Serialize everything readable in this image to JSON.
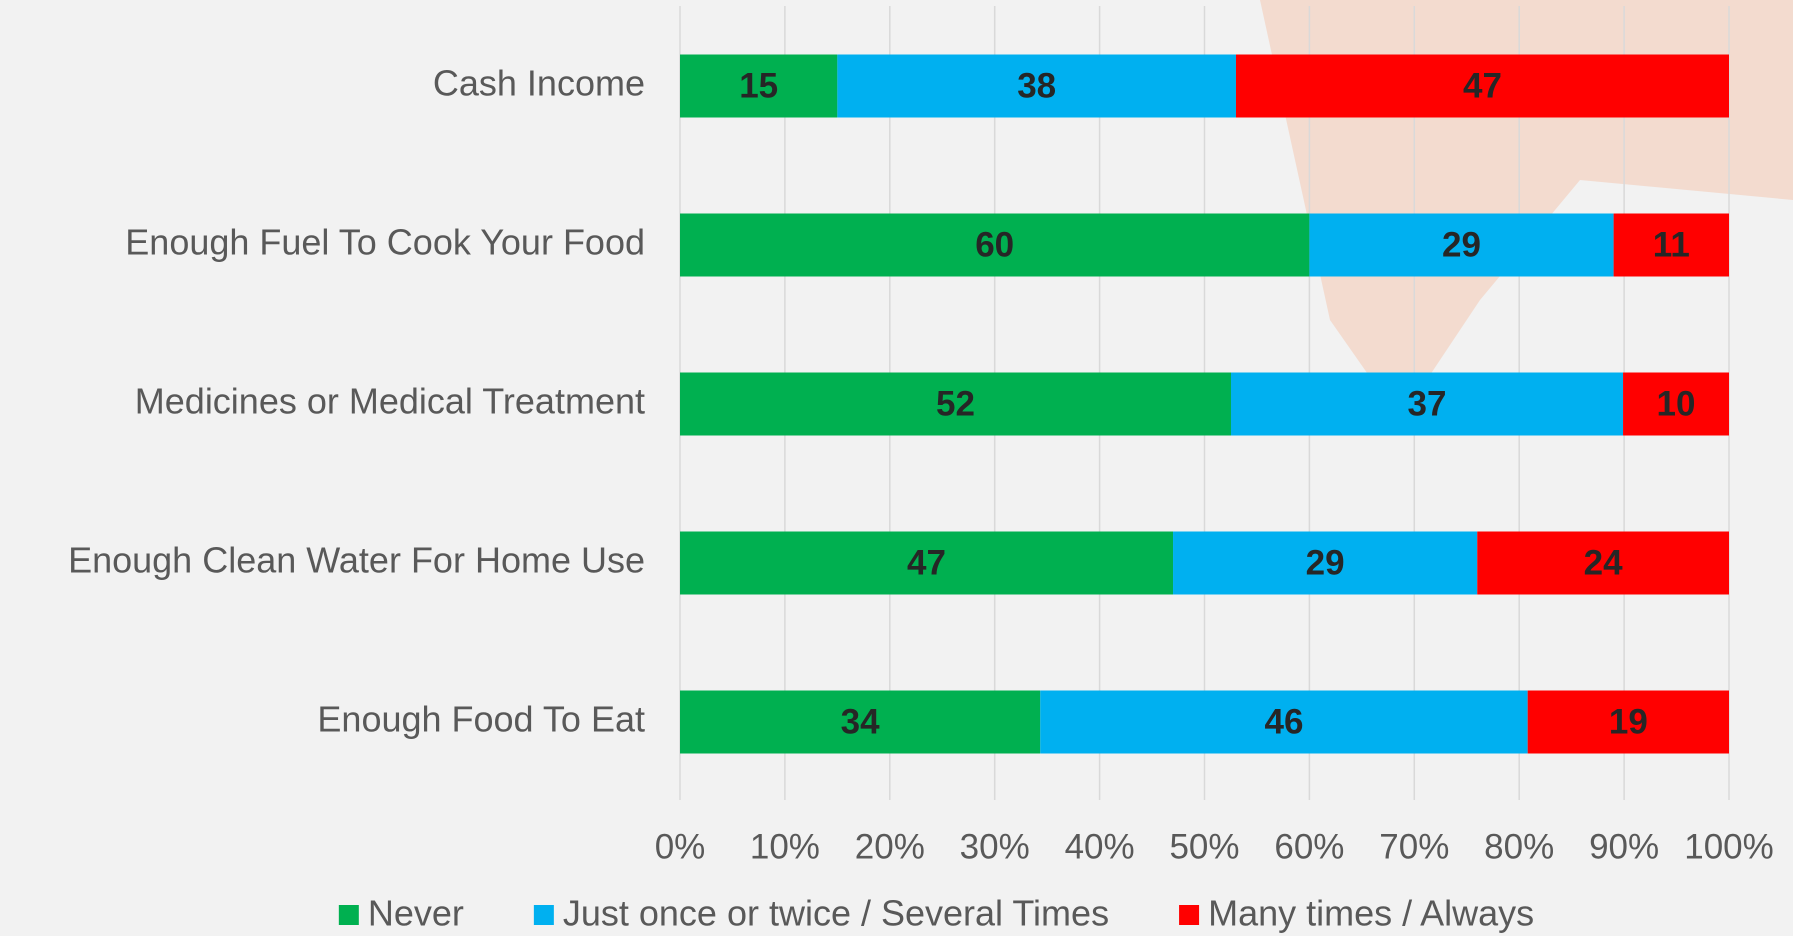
{
  "chart_data": {
    "type": "bar100",
    "categories": [
      "Cash Income",
      "Enough Fuel To Cook Your Food",
      "Medicines or Medical Treatment",
      "Enough Clean Water For Home Use",
      "Enough Food To Eat"
    ],
    "series": [
      {
        "name": "Never",
        "color": "#00b050",
        "values": [
          15,
          60,
          52,
          47,
          34
        ]
      },
      {
        "name": "Just once or twice / Several Times",
        "color": "#00b0f0",
        "values": [
          38,
          29,
          37,
          29,
          46
        ]
      },
      {
        "name": "Many times / Always",
        "color": "#ff0000",
        "values": [
          47,
          11,
          10,
          24,
          19
        ]
      }
    ],
    "xlim": [
      0,
      100
    ],
    "xticks": [
      {
        "value": 0,
        "label": "0%"
      },
      {
        "value": 10,
        "label": "10%"
      },
      {
        "value": 20,
        "label": "20%"
      },
      {
        "value": 30,
        "label": "30%"
      },
      {
        "value": 40,
        "label": "40%"
      },
      {
        "value": 50,
        "label": "50%"
      },
      {
        "value": 60,
        "label": "60%"
      },
      {
        "value": 70,
        "label": "70%"
      },
      {
        "value": 80,
        "label": "80%"
      },
      {
        "value": 90,
        "label": "90%"
      },
      {
        "value": 100,
        "label": "100%"
      }
    ],
    "grid": true,
    "legend": "bottom"
  }
}
